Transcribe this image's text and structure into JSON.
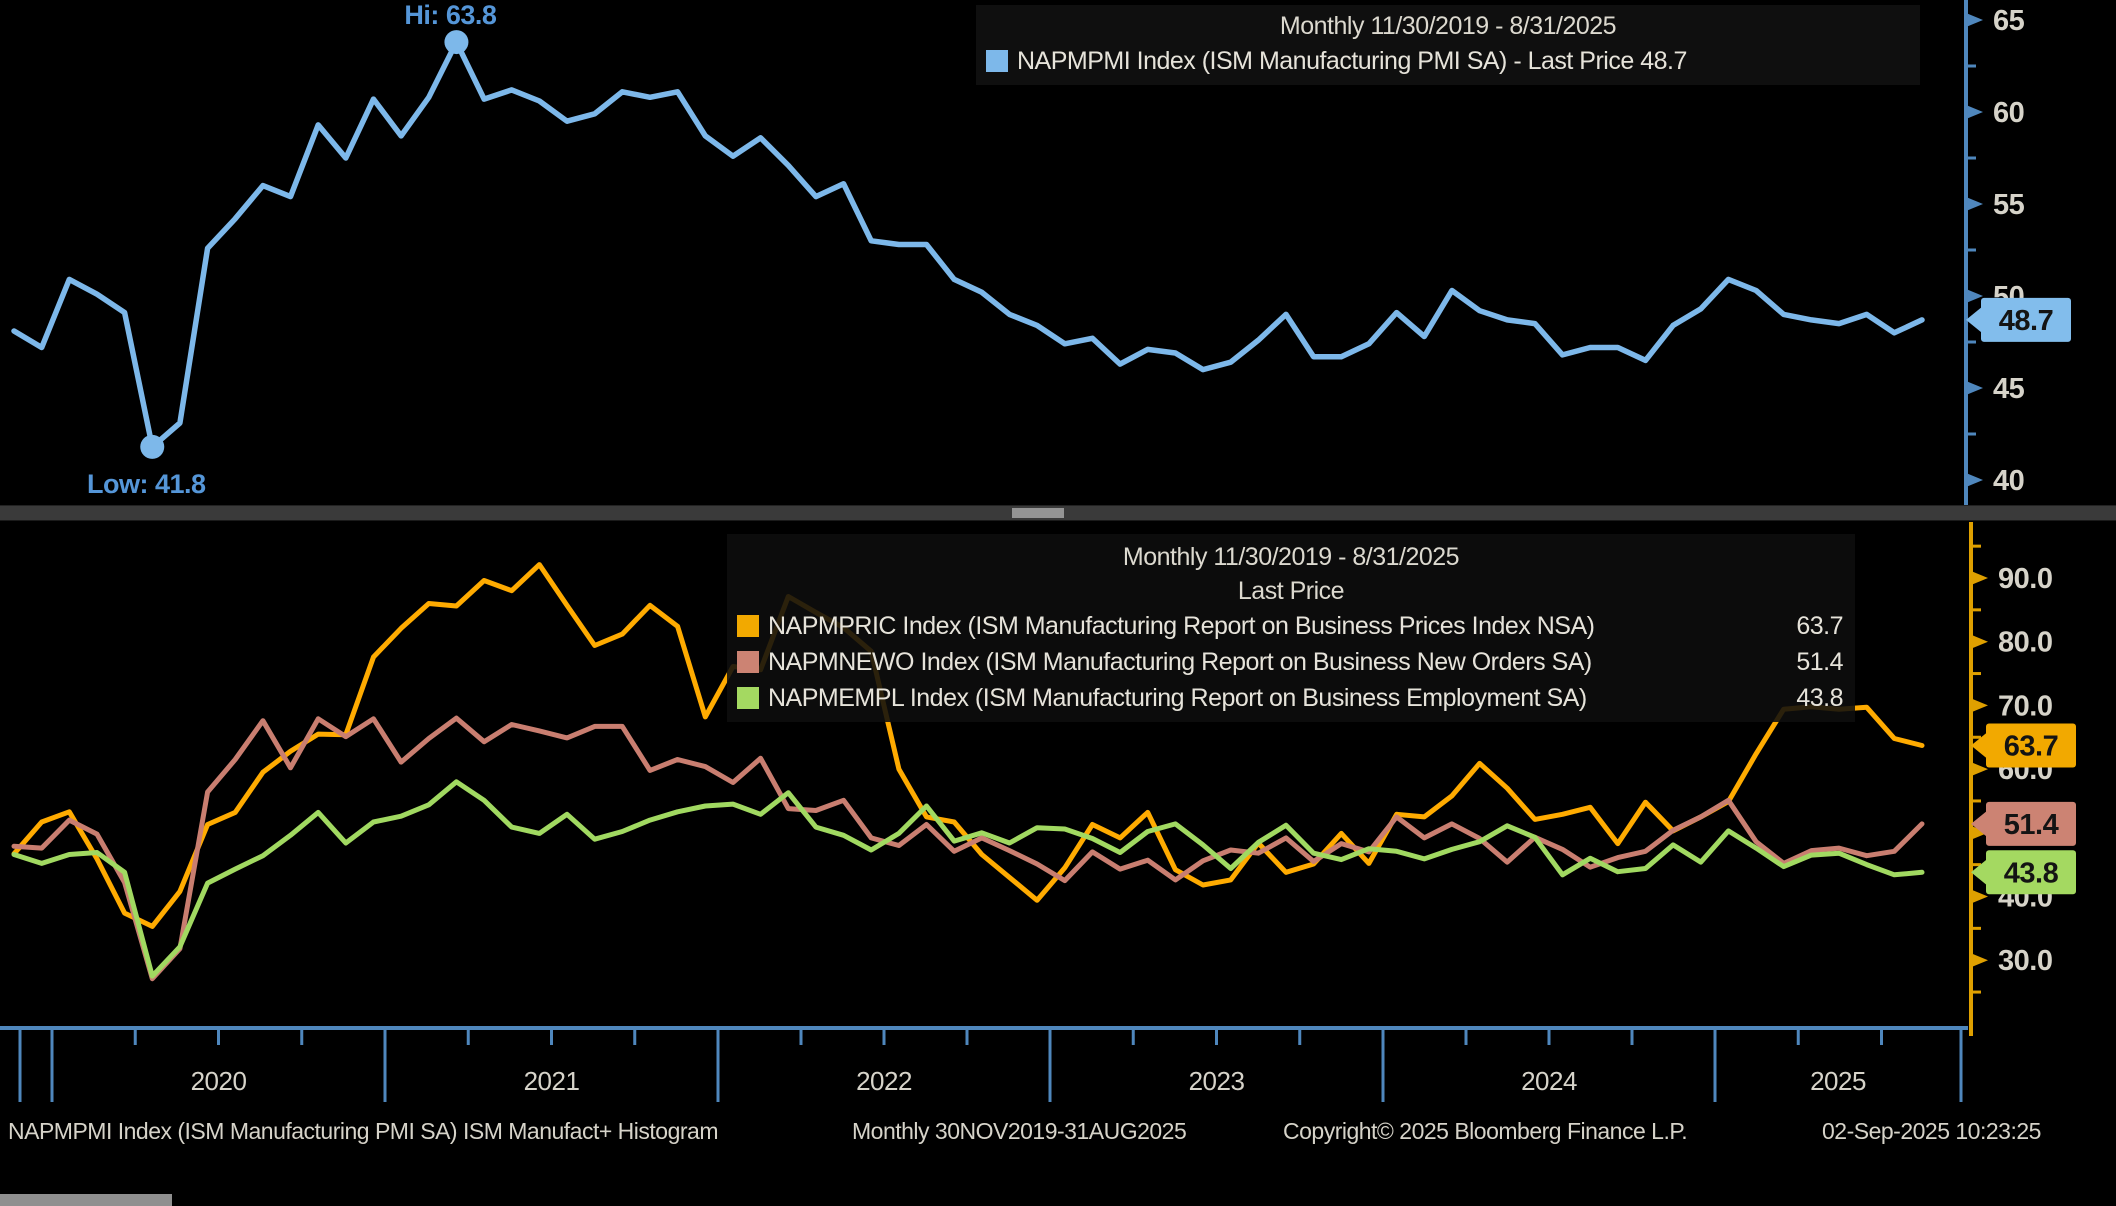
{
  "meta": {
    "app_title": "Bloomberg chart - ISM Manufacturing PMI",
    "period_title": "Monthly 11/30/2019 - 8/31/2025"
  },
  "colors": {
    "background": "#000000",
    "blue_line": "#7db8ea",
    "blue_axis": "#4f87bd",
    "orange_line": "#ffab00",
    "orange_axis": "#dfa000",
    "salmon_line": "#c97e70",
    "green_line": "#a1d961",
    "tag_blue": "#82bdec",
    "tag_orange": "#f2a900",
    "tag_salmon": "#cc8373",
    "tag_green": "#a4d961",
    "tag_text": "#141414",
    "axis_text": "#d6d3c9",
    "annotation_blue": "#5596d8"
  },
  "legend_top": {
    "title": "Monthly 11/30/2019 - 8/31/2025",
    "rows": [
      {
        "swatch": "#7db8ea",
        "label": "NAPMPMI Index (ISM Manufacturing PMI SA) - Last Price 48.7"
      }
    ]
  },
  "legend_bottom": {
    "title": "Monthly 11/30/2019 - 8/31/2025",
    "subtitle": "Last Price",
    "rows": [
      {
        "swatch": "#f2a900",
        "label": "NAPMPRIC Index (ISM Manufacturing Report on Business Prices Index NSA)",
        "value": "63.7"
      },
      {
        "swatch": "#cc8373",
        "label": "NAPMNEWO Index (ISM Manufacturing Report on Business New Orders SA)",
        "value": "51.4"
      },
      {
        "swatch": "#a4d961",
        "label": "NAPMEMPL Index (ISM Manufacturing Report on Business Employment SA)",
        "value": "43.8"
      }
    ]
  },
  "footer": {
    "left": "NAPMPMI Index (ISM Manufacturing PMI SA) ISM Manufact+ Histogram",
    "range": "Monthly 30NOV2019-31AUG2025",
    "copyright": "Copyright© 2025 Bloomberg Finance L.P.",
    "timestamp": "02-Sep-2025 10:23:25"
  },
  "x_axis": {
    "x_unit": "month",
    "x_first": "2019-11",
    "x_last": "2025-08",
    "year_labels": [
      "2020",
      "2021",
      "2022",
      "2023",
      "2024",
      "2025"
    ]
  },
  "chart_data": [
    {
      "type": "line",
      "panel": "top",
      "title": "Monthly 11/30/2019 - 8/31/2025",
      "xlabel": "",
      "ylabel": "",
      "ylim": [
        39.5,
        65.5
      ],
      "grid": false,
      "legend_position": "top-right",
      "yticks": [
        65,
        60,
        55,
        50,
        45,
        40
      ],
      "yticks_minor": [
        62.5,
        57.5,
        52.5,
        47.5,
        42.5
      ],
      "ytick_format": "int",
      "series": [
        {
          "name": "NAPMPMI Index (ISM Manufacturing PMI SA)",
          "short_name": "NAPMPMI",
          "color_key": "blue_line",
          "tag_color_key": "tag_blue",
          "last_price": 48.7,
          "tag_label": "48.7",
          "values": [
            48.1,
            47.2,
            50.9,
            50.1,
            49.1,
            41.8,
            43.1,
            52.6,
            54.2,
            56.0,
            55.4,
            59.3,
            57.5,
            60.7,
            58.7,
            60.8,
            63.8,
            60.7,
            61.2,
            60.6,
            59.5,
            59.9,
            61.1,
            60.8,
            61.1,
            58.7,
            57.6,
            58.6,
            57.1,
            55.4,
            56.1,
            53.0,
            52.8,
            52.8,
            50.9,
            50.2,
            49.0,
            48.4,
            47.4,
            47.7,
            46.3,
            47.1,
            46.9,
            46.0,
            46.4,
            47.6,
            49.0,
            46.7,
            46.7,
            47.4,
            49.1,
            47.8,
            50.3,
            49.2,
            48.7,
            48.5,
            46.8,
            47.2,
            47.2,
            46.5,
            48.4,
            49.3,
            50.9,
            50.3,
            49.0,
            48.7,
            48.5,
            49.0,
            48.0,
            48.7
          ]
        }
      ],
      "annotations": [
        {
          "text": "Hi: 63.8",
          "month_index": 16,
          "value": 63.8,
          "position": "above"
        },
        {
          "text": "Low: 41.8",
          "month_index": 5,
          "value": 41.8,
          "position": "below"
        }
      ]
    },
    {
      "type": "line",
      "panel": "bottom",
      "title": "Monthly 11/30/2019 - 8/31/2025",
      "subtitle": "Last Price",
      "xlabel": "",
      "ylabel": "",
      "ylim": [
        24,
        95
      ],
      "grid": false,
      "legend_position": "top-center",
      "yticks": [
        90,
        80,
        70,
        60,
        50,
        40,
        30
      ],
      "yticks_minor": [
        95,
        85,
        75,
        65,
        55,
        45,
        35,
        25
      ],
      "ytick_format": "1dp",
      "series": [
        {
          "name": "NAPMPRIC Index (ISM Manufacturing Report on Business Prices Index NSA)",
          "short_name": "NAPMPRIC",
          "color_key": "orange_line",
          "tag_color_key": "tag_orange",
          "last_price": 63.7,
          "tag_label": "63.7",
          "values": [
            46.7,
            51.7,
            53.3,
            45.9,
            37.4,
            35.3,
            40.8,
            51.3,
            53.2,
            59.5,
            62.8,
            65.5,
            65.4,
            77.6,
            82.1,
            86.0,
            85.6,
            89.6,
            88.0,
            92.1,
            85.7,
            79.4,
            81.2,
            85.7,
            82.4,
            68.2,
            76.1,
            75.6,
            87.1,
            84.6,
            82.2,
            78.5,
            60.0,
            52.5,
            51.7,
            46.6,
            43.0,
            39.4,
            44.5,
            51.3,
            49.2,
            53.2,
            44.2,
            41.8,
            42.6,
            48.4,
            43.8,
            45.1,
            49.9,
            45.2,
            52.9,
            52.5,
            55.8,
            60.9,
            57.0,
            52.1,
            52.9,
            54.0,
            48.3,
            54.8,
            50.3,
            52.5,
            54.9,
            62.4,
            69.4,
            69.8,
            69.4,
            69.7,
            64.8,
            63.7
          ]
        },
        {
          "name": "NAPMNEWO Index (ISM Manufacturing Report on Business New Orders SA)",
          "short_name": "NAPMNEWO",
          "color_key": "salmon_line",
          "tag_color_key": "tag_salmon",
          "last_price": 51.4,
          "tag_label": "51.4",
          "values": [
            47.9,
            47.6,
            52.0,
            49.8,
            42.2,
            27.1,
            31.8,
            56.4,
            61.5,
            67.6,
            60.2,
            67.9,
            65.1,
            67.9,
            61.1,
            64.8,
            68.0,
            64.3,
            67.0,
            66.0,
            64.9,
            66.7,
            66.7,
            59.8,
            61.5,
            60.4,
            57.9,
            61.7,
            53.8,
            53.5,
            55.1,
            49.2,
            48.0,
            51.3,
            47.1,
            49.2,
            47.2,
            45.1,
            42.5,
            47.0,
            44.3,
            45.7,
            42.6,
            45.6,
            47.3,
            46.8,
            49.2,
            45.5,
            48.3,
            47.0,
            52.5,
            49.2,
            51.4,
            49.1,
            45.4,
            49.3,
            47.4,
            44.6,
            46.1,
            47.1,
            50.4,
            52.5,
            55.1,
            48.6,
            45.2,
            47.2,
            47.6,
            46.4,
            47.1,
            51.4
          ]
        },
        {
          "name": "NAPMEMPL Index (ISM Manufacturing Report on Business Employment SA)",
          "short_name": "NAPMEMPL",
          "color_key": "green_line",
          "tag_color_key": "tag_green",
          "last_price": 43.8,
          "tag_label": "43.8",
          "values": [
            46.6,
            45.2,
            46.6,
            46.9,
            43.8,
            27.5,
            32.1,
            42.1,
            44.3,
            46.4,
            49.6,
            53.2,
            48.4,
            51.7,
            52.6,
            54.4,
            58.0,
            55.1,
            50.9,
            49.9,
            52.9,
            49.0,
            50.2,
            52.0,
            53.3,
            54.2,
            54.5,
            52.9,
            56.3,
            50.9,
            49.6,
            47.3,
            49.9,
            54.2,
            48.7,
            50.0,
            48.4,
            50.8,
            50.6,
            49.1,
            46.9,
            50.2,
            51.4,
            48.1,
            44.4,
            48.5,
            51.2,
            46.8,
            45.8,
            47.5,
            47.1,
            45.9,
            47.4,
            48.6,
            51.1,
            49.3,
            43.4,
            46.0,
            43.9,
            44.4,
            48.1,
            45.4,
            50.3,
            47.6,
            44.7,
            46.5,
            46.8,
            45.0,
            43.4,
            43.8
          ]
        }
      ]
    }
  ]
}
